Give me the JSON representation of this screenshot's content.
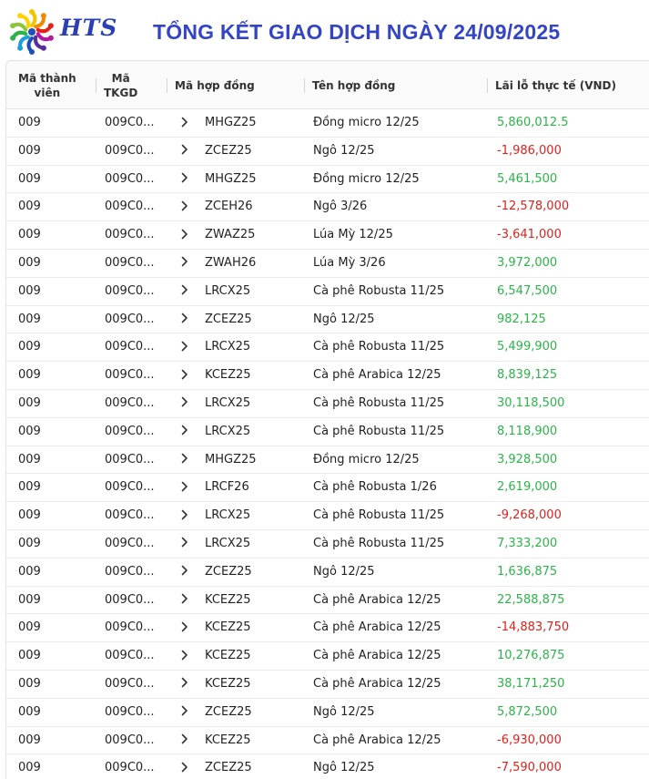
{
  "brand": {
    "name": "HTS",
    "petal_colors": [
      "#f5c400",
      "#f08a00",
      "#e2231a",
      "#b5179e",
      "#5a2d9c",
      "#1e4fb8",
      "#1aa0dc",
      "#2bb24c",
      "#8cc63f",
      "#ffd200"
    ]
  },
  "page": {
    "title": "TỔNG KẾT GIAO DỊCH NGÀY 24/09/2025"
  },
  "colors": {
    "title": "#3344c6",
    "profit": "#2db34a",
    "loss": "#e0201b"
  },
  "table": {
    "columns": {
      "member_line1": "Mã thành",
      "member_line2": "viên",
      "account_line1": "Mã",
      "account_line2": "TKGD",
      "contract_code": "Mã hợp đồng",
      "contract_name": "Tên hợp đồng",
      "pnl": "Lãi lỗ thực tế (VND)"
    },
    "expand_icon": "chevron-right-icon",
    "rows": [
      {
        "member": "009",
        "account": "009C0...",
        "code": "MHGZ25",
        "name": "Đồng micro 12/25",
        "pnl": "5,860,012.5",
        "sign": "pos"
      },
      {
        "member": "009",
        "account": "009C0...",
        "code": "ZCEZ25",
        "name": "Ngô 12/25",
        "pnl": "-1,986,000",
        "sign": "neg"
      },
      {
        "member": "009",
        "account": "009C0...",
        "code": "MHGZ25",
        "name": "Đồng micro 12/25",
        "pnl": "5,461,500",
        "sign": "pos"
      },
      {
        "member": "009",
        "account": "009C0...",
        "code": "ZCEH26",
        "name": "Ngô 3/26",
        "pnl": "-12,578,000",
        "sign": "neg"
      },
      {
        "member": "009",
        "account": "009C0...",
        "code": "ZWAZ25",
        "name": "Lúa Mỳ 12/25",
        "pnl": "-3,641,000",
        "sign": "neg"
      },
      {
        "member": "009",
        "account": "009C0...",
        "code": "ZWAH26",
        "name": "Lúa Mỳ 3/26",
        "pnl": "3,972,000",
        "sign": "pos"
      },
      {
        "member": "009",
        "account": "009C0...",
        "code": "LRCX25",
        "name": "Cà phê Robusta 11/25",
        "pnl": "6,547,500",
        "sign": "pos"
      },
      {
        "member": "009",
        "account": "009C0...",
        "code": "ZCEZ25",
        "name": "Ngô 12/25",
        "pnl": "982,125",
        "sign": "pos"
      },
      {
        "member": "009",
        "account": "009C0...",
        "code": "LRCX25",
        "name": "Cà phê Robusta 11/25",
        "pnl": "5,499,900",
        "sign": "pos"
      },
      {
        "member": "009",
        "account": "009C0...",
        "code": "KCEZ25",
        "name": "Cà phê Arabica 12/25",
        "pnl": "8,839,125",
        "sign": "pos"
      },
      {
        "member": "009",
        "account": "009C0...",
        "code": "LRCX25",
        "name": "Cà phê Robusta 11/25",
        "pnl": "30,118,500",
        "sign": "pos"
      },
      {
        "member": "009",
        "account": "009C0...",
        "code": "LRCX25",
        "name": "Cà phê Robusta 11/25",
        "pnl": "8,118,900",
        "sign": "pos"
      },
      {
        "member": "009",
        "account": "009C0...",
        "code": "MHGZ25",
        "name": "Đồng micro 12/25",
        "pnl": "3,928,500",
        "sign": "pos"
      },
      {
        "member": "009",
        "account": "009C0...",
        "code": "LRCF26",
        "name": "Cà phê Robusta 1/26",
        "pnl": "2,619,000",
        "sign": "pos"
      },
      {
        "member": "009",
        "account": "009C0...",
        "code": "LRCX25",
        "name": "Cà phê Robusta 11/25",
        "pnl": "-9,268,000",
        "sign": "neg"
      },
      {
        "member": "009",
        "account": "009C0...",
        "code": "LRCX25",
        "name": "Cà phê Robusta 11/25",
        "pnl": "7,333,200",
        "sign": "pos"
      },
      {
        "member": "009",
        "account": "009C0...",
        "code": "ZCEZ25",
        "name": "Ngô 12/25",
        "pnl": "1,636,875",
        "sign": "pos"
      },
      {
        "member": "009",
        "account": "009C0...",
        "code": "KCEZ25",
        "name": "Cà phê Arabica 12/25",
        "pnl": "22,588,875",
        "sign": "pos"
      },
      {
        "member": "009",
        "account": "009C0...",
        "code": "KCEZ25",
        "name": "Cà phê Arabica 12/25",
        "pnl": "-14,883,750",
        "sign": "neg"
      },
      {
        "member": "009",
        "account": "009C0...",
        "code": "KCEZ25",
        "name": "Cà phê Arabica 12/25",
        "pnl": "10,276,875",
        "sign": "pos"
      },
      {
        "member": "009",
        "account": "009C0...",
        "code": "KCEZ25",
        "name": "Cà phê Arabica 12/25",
        "pnl": "38,171,250",
        "sign": "pos"
      },
      {
        "member": "009",
        "account": "009C0...",
        "code": "ZCEZ25",
        "name": "Ngô 12/25",
        "pnl": "5,872,500",
        "sign": "pos"
      },
      {
        "member": "009",
        "account": "009C0...",
        "code": "KCEZ25",
        "name": "Cà phê Arabica 12/25",
        "pnl": "-6,930,000",
        "sign": "neg"
      },
      {
        "member": "009",
        "account": "009C0...",
        "code": "ZCEZ25",
        "name": "Ngô 12/25",
        "pnl": "-7,590,000",
        "sign": "neg"
      }
    ]
  }
}
